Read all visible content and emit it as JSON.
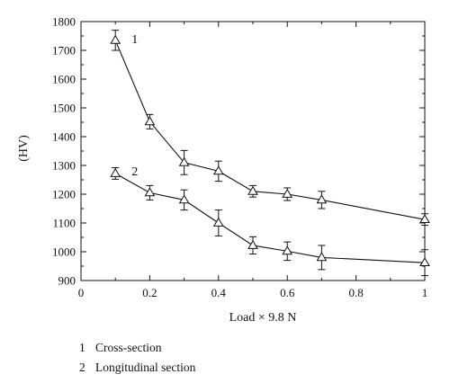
{
  "chart_data": {
    "type": "line",
    "xlabel": "Load × 9.8 N",
    "ylabel": "(HV)",
    "xlim": [
      0,
      1
    ],
    "ylim": [
      900,
      1800
    ],
    "x_ticks": [
      "0",
      "0.2",
      "0.4",
      "0.6",
      "0.8",
      "1"
    ],
    "y_ticks": [
      "900",
      "1000",
      "1100",
      "1200",
      "1300",
      "1400",
      "1500",
      "1600",
      "1700",
      "1800"
    ],
    "grid": false,
    "marker": "open-triangle",
    "series": [
      {
        "name": "1",
        "x": [
          0.1,
          0.2,
          0.3,
          0.4,
          0.5,
          0.6,
          0.7,
          1.0
        ],
        "y": [
          1735,
          1452,
          1310,
          1280,
          1210,
          1200,
          1180,
          1112
        ],
        "error": [
          35,
          25,
          42,
          35,
          20,
          22,
          30,
          20
        ]
      },
      {
        "name": "2",
        "x": [
          0.1,
          0.2,
          0.3,
          0.4,
          0.5,
          0.6,
          0.7,
          1.0
        ],
        "y": [
          1272,
          1205,
          1180,
          1100,
          1022,
          1002,
          980,
          962
        ],
        "error": [
          20,
          25,
          35,
          45,
          30,
          32,
          42,
          45
        ]
      }
    ]
  },
  "legend": [
    {
      "number": "1",
      "label": "Cross-section"
    },
    {
      "number": "2",
      "label": "Longitudinal section"
    }
  ]
}
